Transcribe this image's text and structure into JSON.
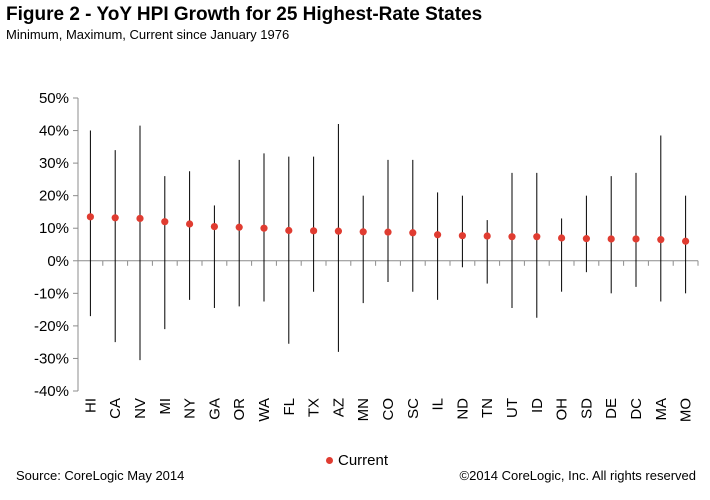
{
  "header": {
    "title": "Figure 2 - YoY HPI Growth for 25 Highest-Rate States",
    "subtitle": "Minimum, Maximum, Current since January 1976"
  },
  "footer": {
    "source": "Source: CoreLogic  May 2014",
    "copyright": "©2014 CoreLogic, Inc. All rights reserved"
  },
  "colors": {
    "current_marker": "#E03C31",
    "range_line": "#000000",
    "axis": "#8c8c8c"
  },
  "chart_data": {
    "type": "scatter",
    "title": "Figure 2 - YoY HPI Growth for 25 Highest-Rate States",
    "subtitle": "Minimum, Maximum, Current since January 1976",
    "xlabel": "",
    "ylabel": "",
    "ylim": [
      -40,
      50
    ],
    "yticks": [
      50,
      40,
      30,
      20,
      10,
      0,
      -10,
      -20,
      -30,
      -40
    ],
    "ytick_labels": [
      "50%",
      "40%",
      "30%",
      "20%",
      "10%",
      "0%",
      "-10%",
      "-20%",
      "-30%",
      "-40%"
    ],
    "grid": false,
    "legend": {
      "position": "bottom-center",
      "entries": [
        "Current"
      ]
    },
    "categories": [
      "HI",
      "CA",
      "NV",
      "MI",
      "NY",
      "GA",
      "OR",
      "WA",
      "FL",
      "TX",
      "AZ",
      "MN",
      "CO",
      "SC",
      "IL",
      "ND",
      "TN",
      "UT",
      "ID",
      "OH",
      "SD",
      "DE",
      "DC",
      "MA",
      "MO"
    ],
    "series": [
      {
        "name": "Maximum",
        "values": [
          40,
          34,
          41.5,
          26,
          27.5,
          17,
          31,
          33,
          32,
          32,
          42,
          20,
          31,
          31,
          21,
          20,
          12.5,
          27,
          27,
          13,
          20,
          26,
          27,
          38.5,
          20
        ]
      },
      {
        "name": "Minimum",
        "values": [
          -17,
          -25,
          -30.5,
          -21,
          -12,
          -14.5,
          -14,
          -12.5,
          -25.5,
          -9.5,
          -28,
          -13,
          -6.5,
          -9.5,
          -12,
          -2,
          -7,
          -14.5,
          -17.5,
          -9.5,
          -3.5,
          -10,
          -8,
          -12.5,
          -10
        ]
      },
      {
        "name": "Current",
        "values": [
          13.5,
          13.2,
          13,
          12,
          11.3,
          10.5,
          10.3,
          10,
          9.3,
          9.2,
          9.1,
          8.9,
          8.8,
          8.6,
          8,
          7.7,
          7.6,
          7.4,
          7.4,
          7,
          6.8,
          6.7,
          6.7,
          6.5,
          6
        ]
      }
    ]
  }
}
